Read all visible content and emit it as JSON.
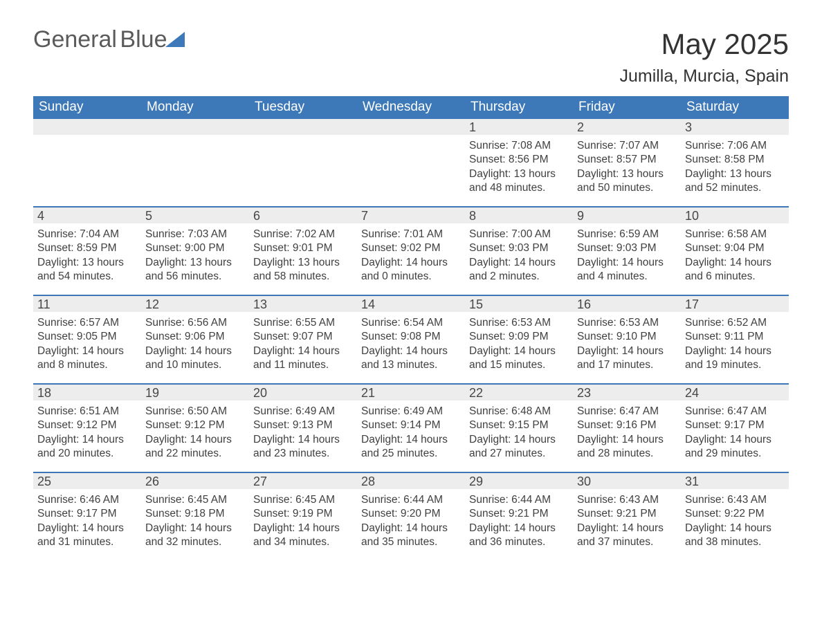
{
  "brand": {
    "part1": "General",
    "part2": "Blue"
  },
  "title": "May 2025",
  "location": "Jumilla, Murcia, Spain",
  "colors": {
    "header_bg": "#3d78b8",
    "header_text": "#ffffff",
    "daynum_bg": "#ededed",
    "daynum_text": "#474747",
    "body_text": "#404040",
    "rule": "#3d78b8",
    "page_bg": "#ffffff",
    "title_text": "#333333"
  },
  "layout": {
    "columns": 7,
    "rows": 5,
    "dow_fontsize": 19,
    "daynum_fontsize": 18,
    "body_fontsize": 15.5,
    "title_fontsize": 42,
    "location_fontsize": 25
  },
  "days_of_week": [
    "Sunday",
    "Monday",
    "Tuesday",
    "Wednesday",
    "Thursday",
    "Friday",
    "Saturday"
  ],
  "weeks": [
    [
      {
        "day": null
      },
      {
        "day": null
      },
      {
        "day": null
      },
      {
        "day": null
      },
      {
        "day": "1",
        "sunrise": "7:08 AM",
        "sunset": "8:56 PM",
        "daylight": "13 hours and 48 minutes."
      },
      {
        "day": "2",
        "sunrise": "7:07 AM",
        "sunset": "8:57 PM",
        "daylight": "13 hours and 50 minutes."
      },
      {
        "day": "3",
        "sunrise": "7:06 AM",
        "sunset": "8:58 PM",
        "daylight": "13 hours and 52 minutes."
      }
    ],
    [
      {
        "day": "4",
        "sunrise": "7:04 AM",
        "sunset": "8:59 PM",
        "daylight": "13 hours and 54 minutes."
      },
      {
        "day": "5",
        "sunrise": "7:03 AM",
        "sunset": "9:00 PM",
        "daylight": "13 hours and 56 minutes."
      },
      {
        "day": "6",
        "sunrise": "7:02 AM",
        "sunset": "9:01 PM",
        "daylight": "13 hours and 58 minutes."
      },
      {
        "day": "7",
        "sunrise": "7:01 AM",
        "sunset": "9:02 PM",
        "daylight": "14 hours and 0 minutes."
      },
      {
        "day": "8",
        "sunrise": "7:00 AM",
        "sunset": "9:03 PM",
        "daylight": "14 hours and 2 minutes."
      },
      {
        "day": "9",
        "sunrise": "6:59 AM",
        "sunset": "9:03 PM",
        "daylight": "14 hours and 4 minutes."
      },
      {
        "day": "10",
        "sunrise": "6:58 AM",
        "sunset": "9:04 PM",
        "daylight": "14 hours and 6 minutes."
      }
    ],
    [
      {
        "day": "11",
        "sunrise": "6:57 AM",
        "sunset": "9:05 PM",
        "daylight": "14 hours and 8 minutes."
      },
      {
        "day": "12",
        "sunrise": "6:56 AM",
        "sunset": "9:06 PM",
        "daylight": "14 hours and 10 minutes."
      },
      {
        "day": "13",
        "sunrise": "6:55 AM",
        "sunset": "9:07 PM",
        "daylight": "14 hours and 11 minutes."
      },
      {
        "day": "14",
        "sunrise": "6:54 AM",
        "sunset": "9:08 PM",
        "daylight": "14 hours and 13 minutes."
      },
      {
        "day": "15",
        "sunrise": "6:53 AM",
        "sunset": "9:09 PM",
        "daylight": "14 hours and 15 minutes."
      },
      {
        "day": "16",
        "sunrise": "6:53 AM",
        "sunset": "9:10 PM",
        "daylight": "14 hours and 17 minutes."
      },
      {
        "day": "17",
        "sunrise": "6:52 AM",
        "sunset": "9:11 PM",
        "daylight": "14 hours and 19 minutes."
      }
    ],
    [
      {
        "day": "18",
        "sunrise": "6:51 AM",
        "sunset": "9:12 PM",
        "daylight": "14 hours and 20 minutes."
      },
      {
        "day": "19",
        "sunrise": "6:50 AM",
        "sunset": "9:12 PM",
        "daylight": "14 hours and 22 minutes."
      },
      {
        "day": "20",
        "sunrise": "6:49 AM",
        "sunset": "9:13 PM",
        "daylight": "14 hours and 23 minutes."
      },
      {
        "day": "21",
        "sunrise": "6:49 AM",
        "sunset": "9:14 PM",
        "daylight": "14 hours and 25 minutes."
      },
      {
        "day": "22",
        "sunrise": "6:48 AM",
        "sunset": "9:15 PM",
        "daylight": "14 hours and 27 minutes."
      },
      {
        "day": "23",
        "sunrise": "6:47 AM",
        "sunset": "9:16 PM",
        "daylight": "14 hours and 28 minutes."
      },
      {
        "day": "24",
        "sunrise": "6:47 AM",
        "sunset": "9:17 PM",
        "daylight": "14 hours and 29 minutes."
      }
    ],
    [
      {
        "day": "25",
        "sunrise": "6:46 AM",
        "sunset": "9:17 PM",
        "daylight": "14 hours and 31 minutes."
      },
      {
        "day": "26",
        "sunrise": "6:45 AM",
        "sunset": "9:18 PM",
        "daylight": "14 hours and 32 minutes."
      },
      {
        "day": "27",
        "sunrise": "6:45 AM",
        "sunset": "9:19 PM",
        "daylight": "14 hours and 34 minutes."
      },
      {
        "day": "28",
        "sunrise": "6:44 AM",
        "sunset": "9:20 PM",
        "daylight": "14 hours and 35 minutes."
      },
      {
        "day": "29",
        "sunrise": "6:44 AM",
        "sunset": "9:21 PM",
        "daylight": "14 hours and 36 minutes."
      },
      {
        "day": "30",
        "sunrise": "6:43 AM",
        "sunset": "9:21 PM",
        "daylight": "14 hours and 37 minutes."
      },
      {
        "day": "31",
        "sunrise": "6:43 AM",
        "sunset": "9:22 PM",
        "daylight": "14 hours and 38 minutes."
      }
    ]
  ],
  "labels": {
    "sunrise": "Sunrise: ",
    "sunset": "Sunset: ",
    "daylight": "Daylight: "
  }
}
